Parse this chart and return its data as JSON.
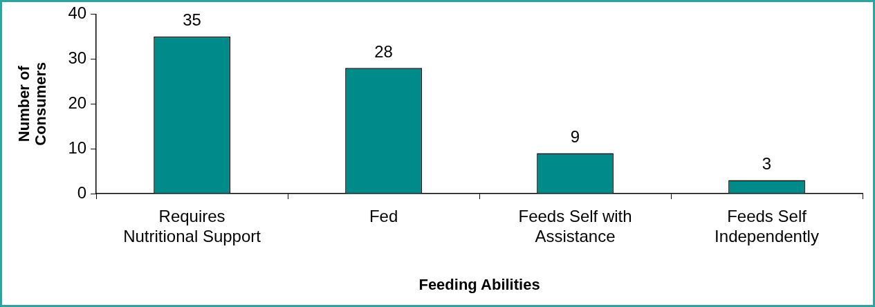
{
  "chart_data": {
    "type": "bar",
    "xlabel": "Feeding Abilities",
    "ylabel": "Number of Consumers",
    "categories": [
      "Requires Nutritional Support",
      "Fed",
      "Feeds Self with Assistance",
      "Feeds Self Independently"
    ],
    "values": [
      35,
      28,
      9,
      3
    ],
    "color": "#008b8b",
    "ylim": [
      0,
      40
    ],
    "yticks": [
      0,
      10,
      20,
      30,
      40
    ],
    "grid": false,
    "legend": false,
    "data_labels": true
  }
}
